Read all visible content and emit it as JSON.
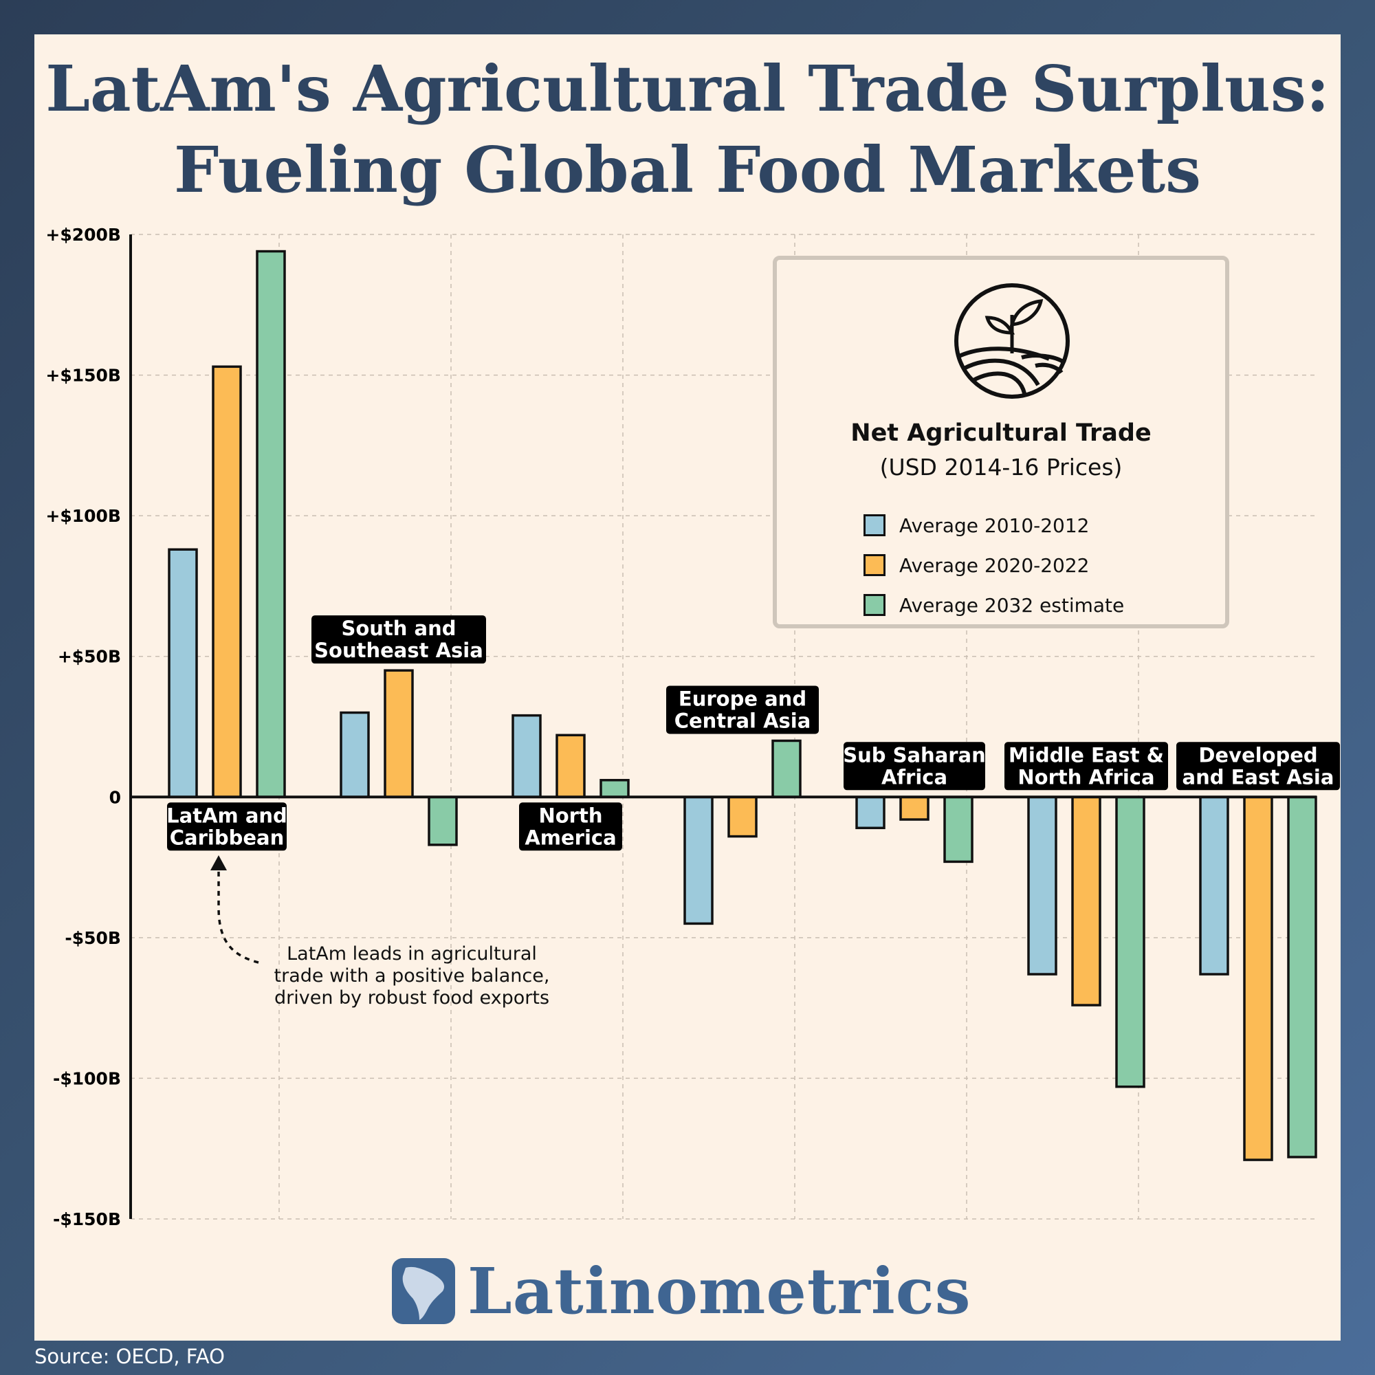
{
  "title": {
    "line1": "LatAm's Agricultural Trade Surplus:",
    "line2": "Fueling Global Food Markets"
  },
  "legend": {
    "title": "Net Agricultural Trade",
    "subtitle": "(USD 2014-16 Prices)",
    "icon": "plant-field-icon"
  },
  "annotation": {
    "lines": [
      "LatAm leads in agricultural",
      "trade with a positive balance,",
      "driven by robust food exports"
    ]
  },
  "brand": {
    "name": "Latinometrics",
    "icon": "latam-map-icon"
  },
  "source": "Source: OECD, FAO",
  "colors": {
    "series": [
      "#9dcadb",
      "#fcbb55",
      "#89cba7"
    ],
    "label_bg": "#000000",
    "brand": "#3f6592",
    "title": "#2f4562"
  },
  "chart_data": {
    "type": "bar",
    "categories": [
      [
        "LatAm and",
        "Caribbean"
      ],
      [
        "South and",
        "Southeast Asia"
      ],
      [
        "North",
        "America"
      ],
      [
        "Europe and",
        "Central Asia"
      ],
      [
        "Sub Saharan",
        "Africa"
      ],
      [
        "Middle East &",
        "North Africa"
      ],
      [
        "Developed",
        "and East Asia"
      ]
    ],
    "label_placement": [
      "below",
      "above",
      "below",
      "above",
      "above",
      "above",
      "above"
    ],
    "series": [
      {
        "name": "Average 2010-2012",
        "values": [
          88,
          30,
          29,
          -45,
          -11,
          -63,
          -63
        ]
      },
      {
        "name": "Average 2020-2022",
        "values": [
          153,
          45,
          22,
          -14,
          -8,
          -74,
          -129
        ]
      },
      {
        "name": "Average 2032 estimate",
        "values": [
          194,
          -17,
          6,
          20,
          -23,
          -103,
          -128
        ]
      }
    ],
    "ylim": [
      -150,
      200
    ],
    "yticks": [
      200,
      150,
      100,
      50,
      0,
      -50,
      -100,
      -150
    ],
    "ytick_labels": [
      "+$200B",
      "+$150B",
      "+$100B",
      "+$50B",
      "0",
      "-$50B",
      "-$100B",
      "-$150B"
    ],
    "grid": true,
    "legend_position": "top-right"
  }
}
